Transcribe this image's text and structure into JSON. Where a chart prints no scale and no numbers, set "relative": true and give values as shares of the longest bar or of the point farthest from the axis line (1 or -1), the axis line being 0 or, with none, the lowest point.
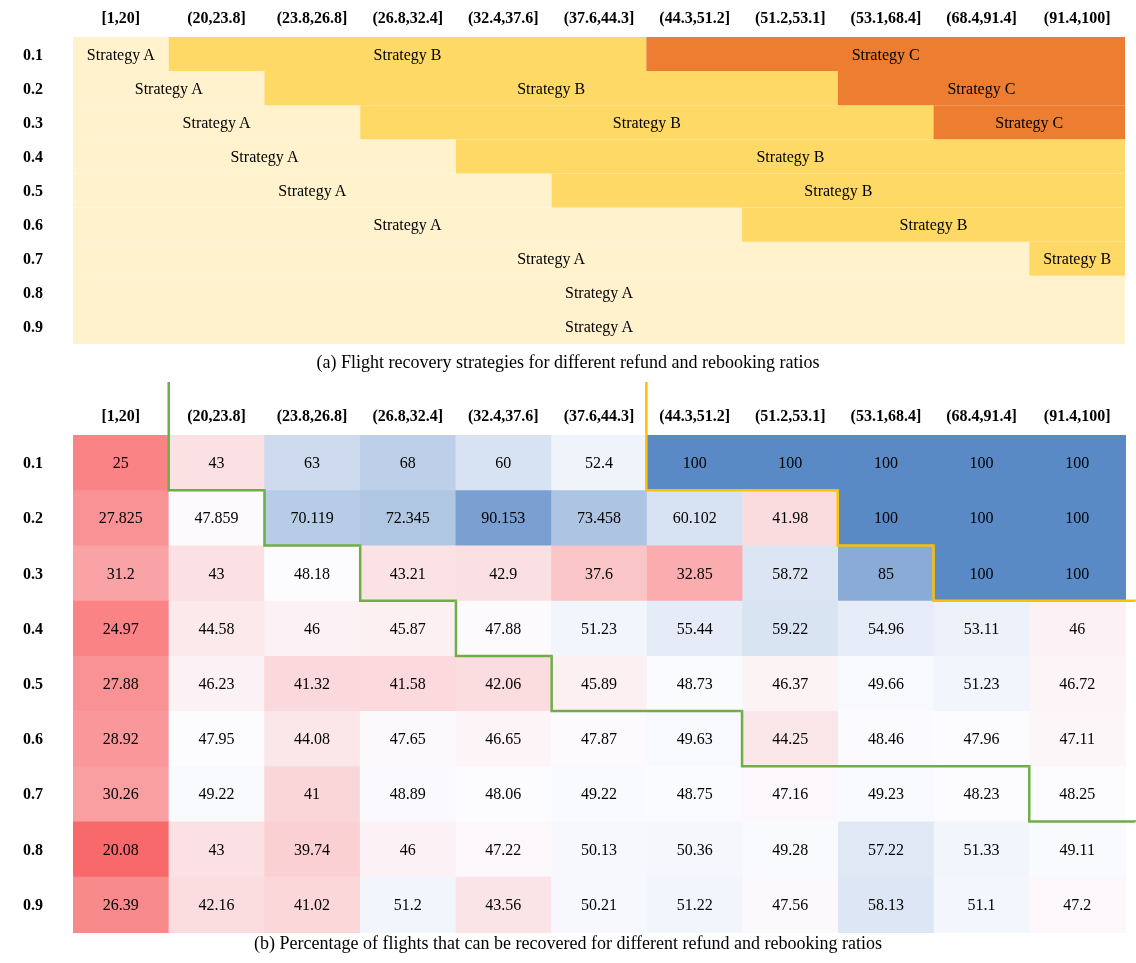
{
  "chart_data": [
    {
      "type": "bar",
      "orientation": "horizontal",
      "stacked": true,
      "title": "(a) Flight recovery strategies for different refund and rebooking ratios",
      "categories": [
        "0.1",
        "0.2",
        "0.3",
        "0.4",
        "0.5",
        "0.6",
        "0.7",
        "0.8",
        "0.9"
      ],
      "relative": true,
      "annotations": [
        "[1,20]",
        "(20,23.8]",
        "(23.8,26.8]",
        "(26.8,32.4]",
        "(32.4,37.6]",
        "(37.6,44.3]",
        "(44.3,51.2]",
        "(51.2,53.1]",
        "(53.1,68.4]",
        "(68.4,91.4]",
        "(91.4,100]"
      ],
      "series": [
        {
          "name": "Strategy A",
          "color": "#fff2cc",
          "values": [
            0.091,
            0.182,
            0.273,
            0.364,
            0.455,
            0.636,
            0.909,
            1,
            1
          ]
        },
        {
          "name": "Strategy B",
          "color": "#ffd966",
          "values": [
            0.454,
            0.545,
            0.545,
            0.636,
            0.545,
            0.364,
            0.091,
            null,
            null
          ]
        },
        {
          "name": "Strategy C",
          "color": "#ed7d31",
          "values": [
            0.455,
            0.273,
            0.182,
            null,
            null,
            null,
            null,
            null,
            null
          ]
        }
      ]
    },
    {
      "type": "heatmap",
      "title": "(b) Percentage of flights that can be recovered for different refund and rebooking ratios",
      "categories": [
        "[1,20]",
        "(20,23.8]",
        "(23.8,26.8]",
        "(26.8,32.4]",
        "(32.4,37.6]",
        "(37.6,44.3]",
        "(44.3,51.2]",
        "(51.2,53.1]",
        "(53.1,68.4]",
        "(68.4,91.4]",
        "(91.4,100]"
      ],
      "y_categories": [
        "0.1",
        "0.2",
        "0.3",
        "0.4",
        "0.5",
        "0.6",
        "0.7",
        "0.8",
        "0.9"
      ],
      "data_labels": true,
      "cells": [
        [
          25,
          43,
          63,
          68,
          60,
          52.4,
          100,
          100,
          100,
          100,
          100
        ],
        [
          27.825,
          47.859,
          70.119,
          72.345,
          90.153,
          73.458,
          60.102,
          41.98,
          100,
          100,
          100
        ],
        [
          31.2,
          43,
          48.18,
          43.21,
          42.9,
          37.6,
          32.85,
          58.72,
          85,
          100,
          100
        ],
        [
          24.97,
          44.58,
          46,
          45.87,
          47.88,
          51.23,
          55.44,
          59.22,
          54.96,
          53.11,
          46
        ],
        [
          27.88,
          46.23,
          41.32,
          41.58,
          42.06,
          45.89,
          48.73,
          46.37,
          49.66,
          51.23,
          46.72
        ],
        [
          28.92,
          47.95,
          44.08,
          47.65,
          46.65,
          47.87,
          49.63,
          44.25,
          48.46,
          47.96,
          47.11
        ],
        [
          30.26,
          49.22,
          41,
          48.89,
          48.06,
          49.22,
          48.75,
          47.16,
          49.23,
          48.23,
          48.25
        ],
        [
          20.08,
          43,
          39.74,
          46,
          47.22,
          50.13,
          50.36,
          49.28,
          57.22,
          51.33,
          49.11
        ],
        [
          26.39,
          42.16,
          41.02,
          51.2,
          43.56,
          50.21,
          51.22,
          47.56,
          58.13,
          51.1,
          47.2
        ]
      ]
    }
  ]
}
